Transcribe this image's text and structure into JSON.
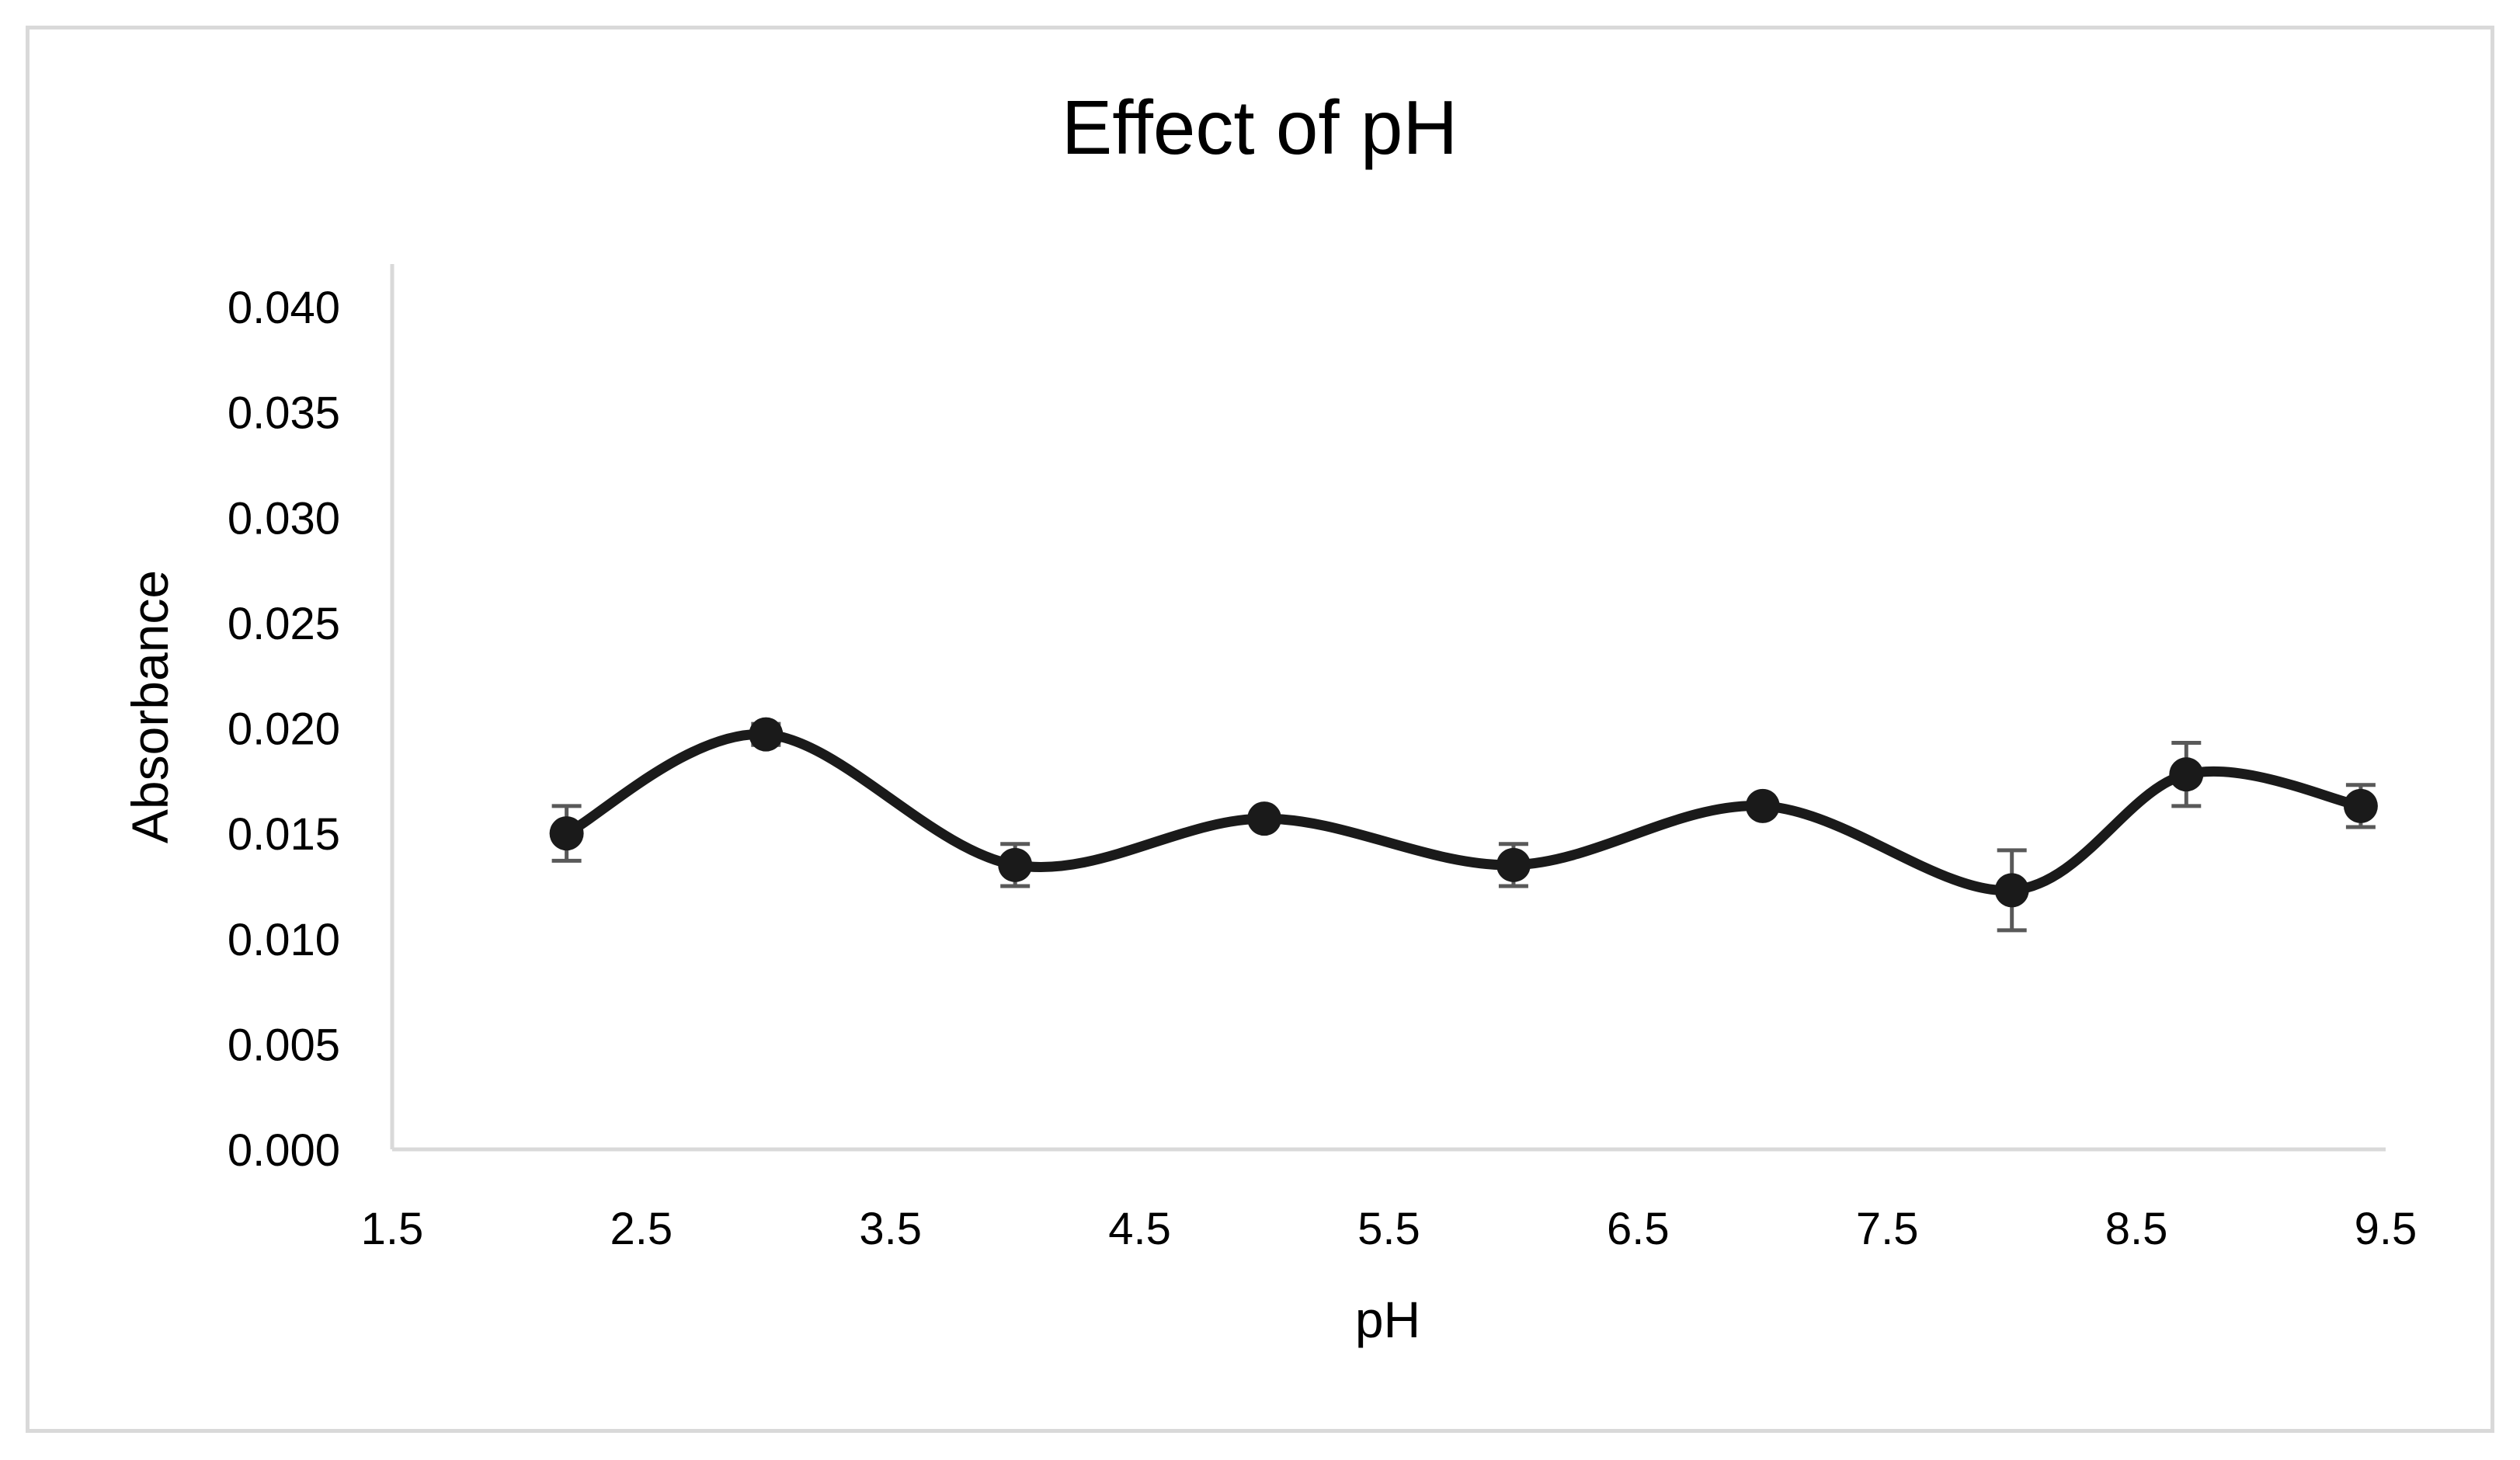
{
  "chart_data": {
    "type": "line",
    "title": "Effect of pH",
    "xlabel": "pH",
    "ylabel": "Absorbance",
    "xlim": [
      1.5,
      9.5
    ],
    "ylim": [
      0,
      0.04
    ],
    "xticks": [
      "1.5",
      "2.5",
      "3.5",
      "4.5",
      "5.5",
      "6.5",
      "7.5",
      "8.5",
      "9.5"
    ],
    "yticks": [
      "0.000",
      "0.005",
      "0.010",
      "0.015",
      "0.020",
      "0.025",
      "0.030",
      "0.035",
      "0.040"
    ],
    "grid": false,
    "legend": "none",
    "smooth": true,
    "series": [
      {
        "name": "Absorbance",
        "color": "#1a1a1a",
        "x": [
          2.2,
          3.0,
          4.0,
          5.0,
          6.0,
          7.0,
          8.0,
          8.7,
          9.4
        ],
        "y": [
          0.015,
          0.0197,
          0.0135,
          0.0157,
          0.0135,
          0.0163,
          0.0123,
          0.0178,
          0.0163
        ],
        "error": [
          0.0013,
          0.0005,
          0.001,
          0.0003,
          0.001,
          0.0003,
          0.0019,
          0.0015,
          0.001
        ]
      }
    ]
  },
  "colors": {
    "axis": "#d9d9d9",
    "errorbar": "#595959",
    "frame": "#d9d9d9"
  }
}
